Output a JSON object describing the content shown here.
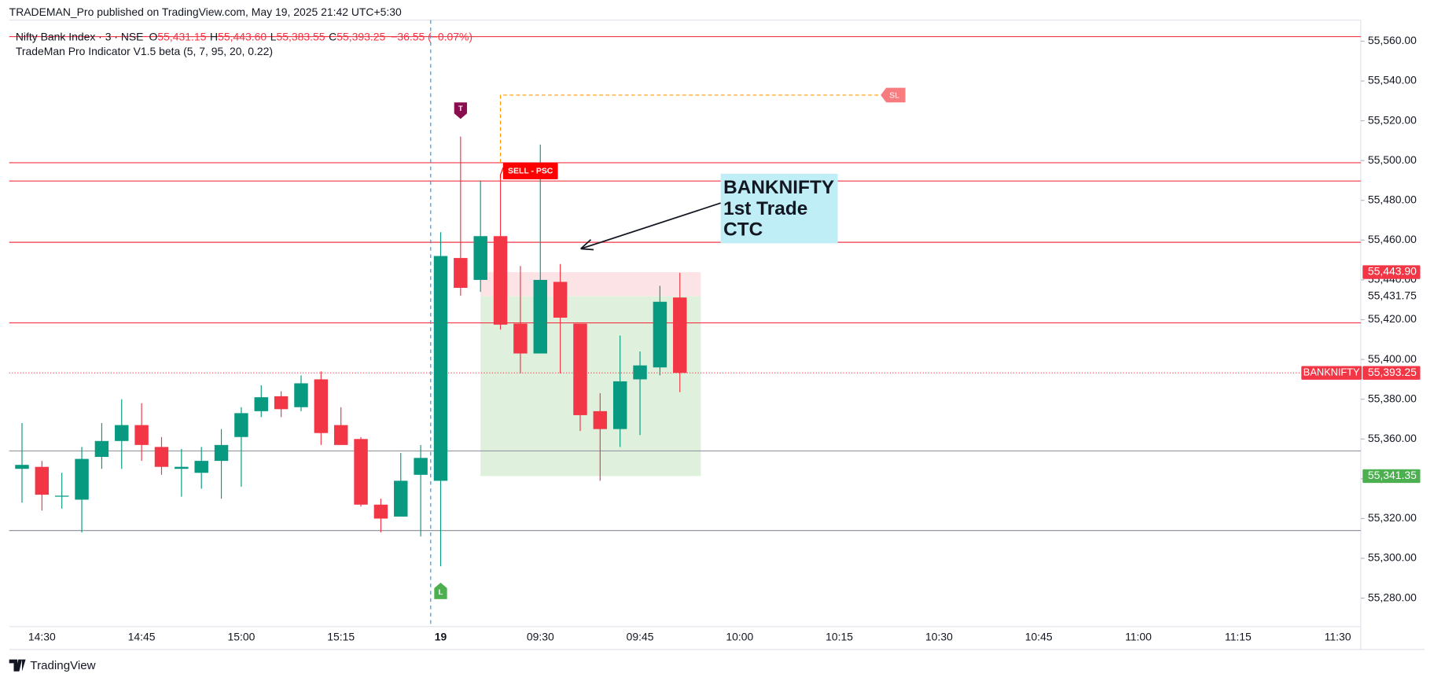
{
  "header": {
    "published": "TRADEMAN_Pro published on TradingView.com, May 19, 2025 21:42 UTC+5:30"
  },
  "footer": {
    "brand": "TradingView"
  },
  "chart_data": {
    "type": "candlestick",
    "symbol": "Nifty Bank Index · 3 · NSE",
    "legend": [
      {
        "key": "O",
        "value": "55,431.15"
      },
      {
        "key": "H",
        "value": "55,443.60"
      },
      {
        "key": "L",
        "value": "55,383.55"
      },
      {
        "key": "C",
        "value": "55,393.25"
      }
    ],
    "change": "−36.55 (−0.07%)",
    "indicator": "TradeMan Pro Indicator V1.5 beta (5, 7, 95, 20, 0.22)",
    "x": [
      "14:27",
      "14:30",
      "14:33",
      "14:36",
      "14:39",
      "14:42",
      "14:45",
      "14:48",
      "14:51",
      "14:54",
      "14:57",
      "15:00",
      "15:03",
      "15:06",
      "15:09",
      "15:12",
      "15:15",
      "15:18",
      "15:21",
      "15:24",
      "15:27",
      "09:15",
      "09:18",
      "09:21",
      "09:24",
      "09:27",
      "09:30",
      "09:33",
      "09:36",
      "09:39",
      "09:42",
      "09:45",
      "09:48",
      "09:51"
    ],
    "open": [
      55345,
      55346,
      55331,
      55329.5,
      55351,
      55359,
      55367,
      55356,
      55345,
      55343,
      55349,
      55361,
      55374,
      55381.5,
      55376,
      55390,
      55367,
      55360,
      55327,
      55321,
      55342,
      55339,
      55451,
      55440,
      55462,
      55418,
      55403,
      55439,
      55418,
      55374,
      55365,
      55390,
      55396,
      55431.15
    ],
    "high": [
      55368,
      55349,
      55343,
      55356,
      55368,
      55380,
      55378,
      55361,
      55355,
      55356,
      55365,
      55376,
      55387,
      55384,
      55392,
      55394,
      55376,
      55361,
      55330,
      55353,
      55357,
      55464,
      55512,
      55490,
      55491,
      55447,
      55508,
      55448,
      55418,
      55383,
      55412,
      55404,
      55437,
      55443.6
    ],
    "low": [
      55328,
      55324,
      55325,
      55313,
      55345,
      55345,
      55349,
      55342,
      55331,
      55335,
      55330,
      55336,
      55371,
      55371,
      55374,
      55357,
      55357,
      55326,
      55313,
      55321,
      55311,
      55296,
      55432,
      55434,
      55415,
      55393,
      55403,
      55393,
      55364,
      55339,
      55356,
      55362,
      55392,
      55383.55
    ],
    "close": [
      55347,
      55332,
      55331.5,
      55350,
      55359,
      55367,
      55357,
      55346,
      55346,
      55349,
      55357,
      55373,
      55381,
      55375,
      55388,
      55363,
      55357,
      55327,
      55320,
      55339,
      55350.5,
      55452,
      55436,
      55462,
      55417.5,
      55403,
      55440,
      55421,
      55372,
      55365,
      55389,
      55397,
      55429,
      55393.25
    ],
    "up_color": "#089981",
    "down_color": "#f23645",
    "ylim": [
      55265.7,
      55570.6
    ],
    "yticks": [
      {
        "value": 55280,
        "label": "55,280.00"
      },
      {
        "value": 55300,
        "label": "55,300.00"
      },
      {
        "value": 55320,
        "label": "55,320.00"
      },
      {
        "value": 55340,
        "label": "55,340.00"
      },
      {
        "value": 55360,
        "label": "55,360.00"
      },
      {
        "value": 55380,
        "label": "55,380.00"
      },
      {
        "value": 55400,
        "label": "55,400.00"
      },
      {
        "value": 55420,
        "label": "55,420.00"
      },
      {
        "value": 55440,
        "label": "55,440.00"
      },
      {
        "value": 55460,
        "label": "55,460.00"
      },
      {
        "value": 55480,
        "label": "55,480.00"
      },
      {
        "value": 55500,
        "label": "55,500.00"
      },
      {
        "value": 55520,
        "label": "55,520.00"
      },
      {
        "value": 55540,
        "label": "55,540.00"
      },
      {
        "value": 55560,
        "label": "55,560.00"
      }
    ],
    "xticks": [
      "14:30",
      "14:45",
      "15:00",
      "15:15",
      "19",
      "09:30",
      "09:45",
      "10:00",
      "10:15",
      "10:30",
      "10:45",
      "11:00",
      "11:15",
      "11:30"
    ],
    "levels": [
      {
        "value": 55562.3,
        "color": "#f23645"
      },
      {
        "value": 55498.9,
        "color": "#f23645"
      },
      {
        "value": 55489.7,
        "color": "#f23645"
      },
      {
        "value": 55458.9,
        "color": "#f23645"
      },
      {
        "value": 55418.4,
        "color": "#f23645"
      },
      {
        "value": 55354,
        "color": "#9598a1"
      },
      {
        "value": 55314,
        "color": "#9598a1"
      }
    ],
    "zones": [
      {
        "from": 55431.75,
        "to": 55443.9,
        "color": "#fce4e6"
      },
      {
        "from": 55341.35,
        "to": 55431.75,
        "color": "#dff0dc"
      }
    ],
    "price_labels": [
      {
        "value": 55443.9,
        "label": "55,443.90",
        "color": "#f23645"
      },
      {
        "value": 55431.75,
        "label": "55,431.75"
      },
      {
        "value": 55393.25,
        "label": "55,393.25",
        "color": "#f23645",
        "name": "BANKNIFTY"
      },
      {
        "value": 55341.35,
        "label": "55,341.35",
        "color": "#4caf50"
      }
    ],
    "stop_loss": {
      "text": "SL",
      "value": 55532.9
    },
    "signal": {
      "text": "SELL - PSC"
    },
    "markers": [
      {
        "text": "T",
        "color": "#880e4f"
      },
      {
        "text": "L",
        "color": "#4caf50"
      }
    ],
    "callout": [
      "BANKNIFTY",
      "1st Trade",
      "CTC"
    ]
  }
}
